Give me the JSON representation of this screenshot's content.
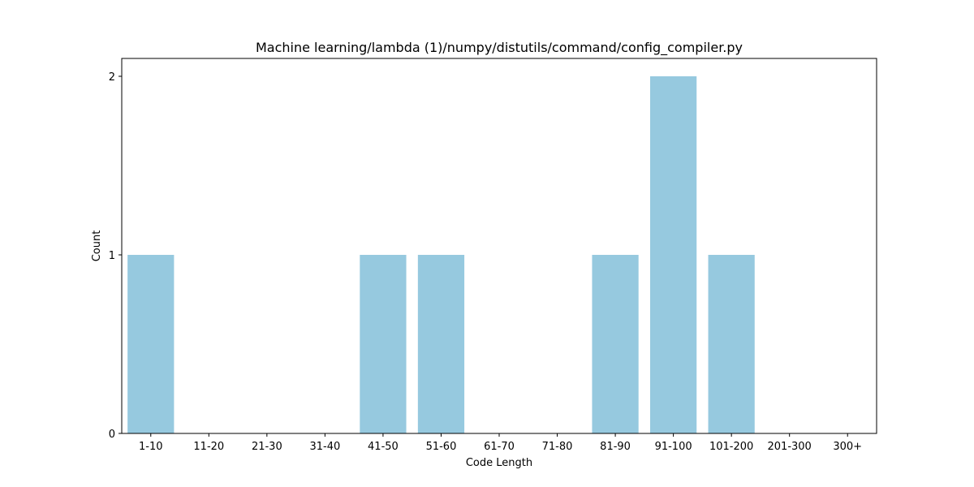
{
  "chart_data": {
    "type": "bar",
    "title": "Machine learning/lambda (1)/numpy/distutils/command/config_compiler.py",
    "xlabel": "Code Length",
    "ylabel": "Count",
    "categories": [
      "1-10",
      "11-20",
      "21-30",
      "31-40",
      "41-50",
      "51-60",
      "61-70",
      "71-80",
      "81-90",
      "91-100",
      "101-200",
      "201-300",
      "300+"
    ],
    "values": [
      1,
      0,
      0,
      0,
      1,
      1,
      0,
      0,
      1,
      2,
      1,
      0,
      0
    ],
    "ylim": [
      0,
      2.1
    ],
    "yticks": [
      0,
      1,
      2
    ],
    "bar_color": "#96c9df",
    "grid": false,
    "legend": "none"
  }
}
